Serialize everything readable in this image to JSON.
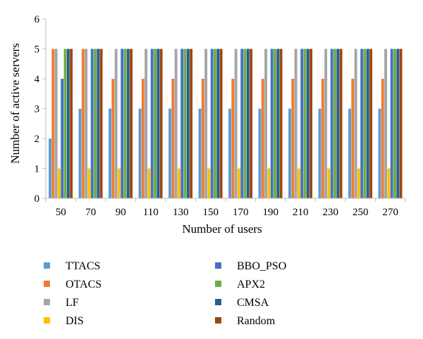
{
  "chart_data": {
    "type": "bar",
    "xlabel": "Number of users",
    "ylabel": "Number of active servers",
    "ylim": [
      0,
      6
    ],
    "yticks": [
      0,
      1,
      2,
      3,
      4,
      5,
      6
    ],
    "grid": false,
    "legend_position": "bottom",
    "categories": [
      "50",
      "70",
      "90",
      "110",
      "130",
      "150",
      "170",
      "190",
      "210",
      "230",
      "250",
      "270"
    ],
    "series": [
      {
        "name": "TTACS",
        "color": "#5b9bd5",
        "values": [
          2,
          3,
          3,
          3,
          3,
          3,
          3,
          3,
          3,
          3,
          3,
          3
        ]
      },
      {
        "name": "OTACS",
        "color": "#ed7d31",
        "values": [
          5,
          5,
          4,
          4,
          4,
          4,
          4,
          4,
          4,
          4,
          4,
          4
        ]
      },
      {
        "name": "LF",
        "color": "#a5a5a5",
        "values": [
          5,
          5,
          5,
          5,
          5,
          5,
          5,
          5,
          5,
          5,
          5,
          5
        ]
      },
      {
        "name": "DIS",
        "color": "#ffc000",
        "values": [
          1,
          1,
          1,
          1,
          1,
          1,
          1,
          1,
          1,
          1,
          1,
          1
        ]
      },
      {
        "name": "BBO_PSO",
        "color": "#4472c4",
        "values": [
          4,
          5,
          5,
          5,
          5,
          5,
          5,
          5,
          5,
          5,
          5,
          5
        ]
      },
      {
        "name": "APX2",
        "color": "#70ad47",
        "values": [
          5,
          5,
          5,
          5,
          5,
          5,
          5,
          5,
          5,
          5,
          5,
          5
        ]
      },
      {
        "name": "CMSA",
        "color": "#255e91",
        "values": [
          5,
          5,
          5,
          5,
          5,
          5,
          5,
          5,
          5,
          5,
          5,
          5
        ]
      },
      {
        "name": "Random",
        "color": "#9e480e",
        "values": [
          5,
          5,
          5,
          5,
          5,
          5,
          5,
          5,
          5,
          5,
          5,
          5
        ]
      }
    ]
  }
}
